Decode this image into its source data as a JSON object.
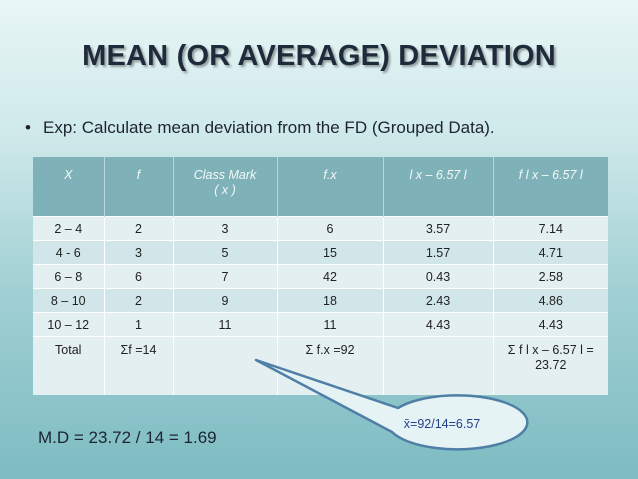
{
  "slide": {
    "title": "MEAN (OR AVERAGE) DEVIATION",
    "bullet_marker": "•",
    "bullet_text": "Exp: Calculate mean deviation from the FD (Grouped Data).",
    "result": "M.D = 23.72 / 14 = 1.69",
    "callout": "x̄=92/14=6.57"
  },
  "table": {
    "headers": [
      "X",
      "f",
      "Class Mark ( x )",
      "f.x",
      "l x – 6.57 l",
      "f l x – 6.57 l"
    ],
    "rows": [
      [
        "2 – 4",
        "2",
        "3",
        "6",
        "3.57",
        "7.14"
      ],
      [
        "4 - 6",
        "3",
        "5",
        "15",
        "1.57",
        "4.71"
      ],
      [
        "6 – 8",
        "6",
        "7",
        "42",
        "0.43",
        "2.58"
      ],
      [
        "8 – 10",
        "2",
        "9",
        "18",
        "2.43",
        "4.86"
      ],
      [
        "10 – 12",
        "1",
        "11",
        "11",
        "4.43",
        "4.43"
      ]
    ],
    "total_row": [
      "Total",
      "Σf =14",
      "",
      "Σ f.x =92",
      "",
      "Σ f l x – 6.57 l = 23.72"
    ]
  },
  "colors": {
    "header_bg": "#7fb2b8",
    "row_bg": "#e3eff0",
    "row_alt_bg": "#d1e6e8",
    "callout_fill": "#e6f3f4",
    "callout_border": "#4f7fa6",
    "callout_text": "#23408e"
  }
}
